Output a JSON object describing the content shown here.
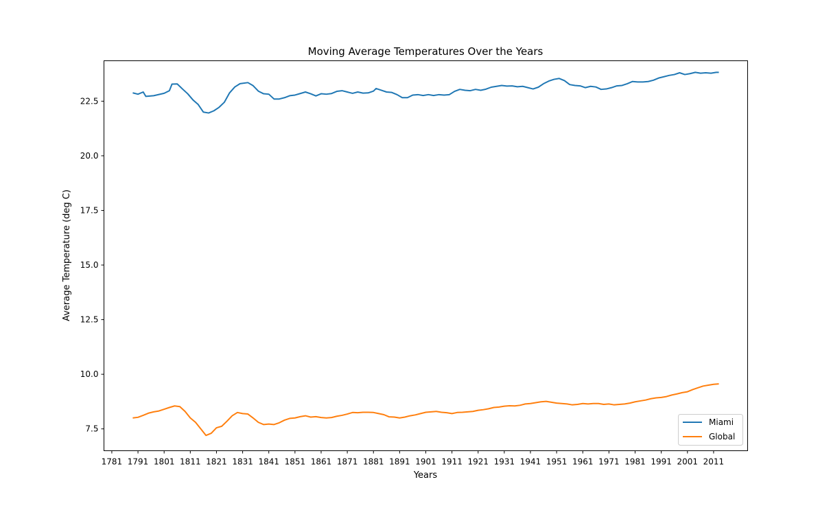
{
  "chart_data": {
    "type": "line",
    "title": "Moving Average Temperatures Over the Years",
    "xlabel": "Years",
    "ylabel": "Average Temperature (deg C)",
    "xlim": [
      1778,
      2024
    ],
    "ylim": [
      6.5,
      24.35
    ],
    "xticks": [
      1781,
      1791,
      1801,
      1811,
      1821,
      1831,
      1841,
      1851,
      1861,
      1871,
      1881,
      1891,
      1901,
      1911,
      1921,
      1931,
      1941,
      1951,
      1961,
      1971,
      1981,
      1991,
      2001,
      2011
    ],
    "yticks": [
      7.5,
      10.0,
      12.5,
      15.0,
      17.5,
      20.0,
      22.5
    ],
    "yticks_text": [
      "7.5",
      "10.0",
      "12.5",
      "15.0",
      "17.5",
      "20.0",
      "22.5"
    ],
    "grid": false,
    "legend_position": "lower-right",
    "series": [
      {
        "name": "Miami",
        "color": "#1f77b4",
        "points": [
          [
            1789,
            22.88
          ],
          [
            1791,
            22.82
          ],
          [
            1793,
            22.92
          ],
          [
            1794,
            22.72
          ],
          [
            1797,
            22.75
          ],
          [
            1801,
            22.86
          ],
          [
            1803,
            22.98
          ],
          [
            1804,
            23.28
          ],
          [
            1806,
            23.29
          ],
          [
            1808,
            23.06
          ],
          [
            1810,
            22.84
          ],
          [
            1812,
            22.56
          ],
          [
            1814,
            22.35
          ],
          [
            1816,
            22.0
          ],
          [
            1818,
            21.96
          ],
          [
            1820,
            22.06
          ],
          [
            1822,
            22.22
          ],
          [
            1824,
            22.45
          ],
          [
            1826,
            22.88
          ],
          [
            1828,
            23.15
          ],
          [
            1830,
            23.3
          ],
          [
            1833,
            23.35
          ],
          [
            1835,
            23.21
          ],
          [
            1837,
            22.96
          ],
          [
            1839,
            22.84
          ],
          [
            1841,
            22.82
          ],
          [
            1843,
            22.6
          ],
          [
            1845,
            22.6
          ],
          [
            1847,
            22.66
          ],
          [
            1849,
            22.75
          ],
          [
            1851,
            22.78
          ],
          [
            1853,
            22.85
          ],
          [
            1855,
            22.92
          ],
          [
            1857,
            22.84
          ],
          [
            1859,
            22.74
          ],
          [
            1861,
            22.84
          ],
          [
            1863,
            22.82
          ],
          [
            1865,
            22.85
          ],
          [
            1867,
            22.95
          ],
          [
            1869,
            22.98
          ],
          [
            1871,
            22.92
          ],
          [
            1873,
            22.86
          ],
          [
            1875,
            22.92
          ],
          [
            1877,
            22.87
          ],
          [
            1879,
            22.88
          ],
          [
            1881,
            22.96
          ],
          [
            1882,
            23.08
          ],
          [
            1884,
            23.0
          ],
          [
            1886,
            22.92
          ],
          [
            1888,
            22.9
          ],
          [
            1890,
            22.8
          ],
          [
            1892,
            22.66
          ],
          [
            1894,
            22.66
          ],
          [
            1896,
            22.78
          ],
          [
            1898,
            22.8
          ],
          [
            1900,
            22.76
          ],
          [
            1902,
            22.8
          ],
          [
            1904,
            22.76
          ],
          [
            1906,
            22.8
          ],
          [
            1908,
            22.78
          ],
          [
            1910,
            22.8
          ],
          [
            1912,
            22.95
          ],
          [
            1914,
            23.04
          ],
          [
            1916,
            23.0
          ],
          [
            1918,
            22.98
          ],
          [
            1920,
            23.04
          ],
          [
            1922,
            23.0
          ],
          [
            1924,
            23.05
          ],
          [
            1926,
            23.14
          ],
          [
            1928,
            23.18
          ],
          [
            1930,
            23.22
          ],
          [
            1932,
            23.19
          ],
          [
            1934,
            23.2
          ],
          [
            1936,
            23.16
          ],
          [
            1938,
            23.18
          ],
          [
            1940,
            23.12
          ],
          [
            1942,
            23.06
          ],
          [
            1944,
            23.14
          ],
          [
            1946,
            23.3
          ],
          [
            1948,
            23.42
          ],
          [
            1950,
            23.5
          ],
          [
            1952,
            23.54
          ],
          [
            1954,
            23.44
          ],
          [
            1956,
            23.26
          ],
          [
            1958,
            23.22
          ],
          [
            1960,
            23.2
          ],
          [
            1962,
            23.12
          ],
          [
            1964,
            23.18
          ],
          [
            1966,
            23.15
          ],
          [
            1968,
            23.04
          ],
          [
            1970,
            23.06
          ],
          [
            1972,
            23.12
          ],
          [
            1974,
            23.2
          ],
          [
            1976,
            23.22
          ],
          [
            1978,
            23.3
          ],
          [
            1980,
            23.4
          ],
          [
            1982,
            23.38
          ],
          [
            1984,
            23.38
          ],
          [
            1986,
            23.4
          ],
          [
            1988,
            23.46
          ],
          [
            1990,
            23.56
          ],
          [
            1992,
            23.62
          ],
          [
            1994,
            23.68
          ],
          [
            1996,
            23.72
          ],
          [
            1998,
            23.8
          ],
          [
            2000,
            23.72
          ],
          [
            2002,
            23.76
          ],
          [
            2004,
            23.82
          ],
          [
            2006,
            23.78
          ],
          [
            2008,
            23.8
          ],
          [
            2010,
            23.78
          ],
          [
            2012,
            23.82
          ],
          [
            2013,
            23.82
          ]
        ]
      },
      {
        "name": "Global",
        "color": "#ff7f0e",
        "points": [
          [
            1789,
            8.0
          ],
          [
            1791,
            8.03
          ],
          [
            1793,
            8.12
          ],
          [
            1795,
            8.22
          ],
          [
            1797,
            8.28
          ],
          [
            1799,
            8.32
          ],
          [
            1801,
            8.4
          ],
          [
            1803,
            8.48
          ],
          [
            1805,
            8.55
          ],
          [
            1807,
            8.52
          ],
          [
            1809,
            8.3
          ],
          [
            1811,
            8.0
          ],
          [
            1813,
            7.8
          ],
          [
            1815,
            7.5
          ],
          [
            1817,
            7.2
          ],
          [
            1819,
            7.3
          ],
          [
            1821,
            7.55
          ],
          [
            1823,
            7.62
          ],
          [
            1825,
            7.85
          ],
          [
            1827,
            8.1
          ],
          [
            1829,
            8.25
          ],
          [
            1831,
            8.2
          ],
          [
            1833,
            8.18
          ],
          [
            1835,
            8.0
          ],
          [
            1837,
            7.8
          ],
          [
            1839,
            7.7
          ],
          [
            1841,
            7.72
          ],
          [
            1843,
            7.7
          ],
          [
            1845,
            7.78
          ],
          [
            1847,
            7.9
          ],
          [
            1849,
            7.98
          ],
          [
            1851,
            8.0
          ],
          [
            1853,
            8.06
          ],
          [
            1855,
            8.1
          ],
          [
            1857,
            8.04
          ],
          [
            1859,
            8.06
          ],
          [
            1861,
            8.02
          ],
          [
            1863,
            8.0
          ],
          [
            1865,
            8.02
          ],
          [
            1867,
            8.08
          ],
          [
            1869,
            8.12
          ],
          [
            1871,
            8.18
          ],
          [
            1873,
            8.25
          ],
          [
            1875,
            8.24
          ],
          [
            1877,
            8.26
          ],
          [
            1879,
            8.26
          ],
          [
            1881,
            8.25
          ],
          [
            1883,
            8.2
          ],
          [
            1885,
            8.15
          ],
          [
            1887,
            8.05
          ],
          [
            1889,
            8.04
          ],
          [
            1891,
            8.0
          ],
          [
            1893,
            8.04
          ],
          [
            1895,
            8.1
          ],
          [
            1897,
            8.14
          ],
          [
            1899,
            8.2
          ],
          [
            1901,
            8.26
          ],
          [
            1903,
            8.28
          ],
          [
            1905,
            8.3
          ],
          [
            1907,
            8.26
          ],
          [
            1909,
            8.24
          ],
          [
            1911,
            8.2
          ],
          [
            1913,
            8.25
          ],
          [
            1915,
            8.26
          ],
          [
            1917,
            8.28
          ],
          [
            1919,
            8.3
          ],
          [
            1921,
            8.35
          ],
          [
            1923,
            8.38
          ],
          [
            1925,
            8.42
          ],
          [
            1927,
            8.48
          ],
          [
            1929,
            8.5
          ],
          [
            1931,
            8.54
          ],
          [
            1933,
            8.56
          ],
          [
            1935,
            8.55
          ],
          [
            1937,
            8.58
          ],
          [
            1939,
            8.64
          ],
          [
            1941,
            8.66
          ],
          [
            1943,
            8.7
          ],
          [
            1945,
            8.74
          ],
          [
            1947,
            8.76
          ],
          [
            1949,
            8.72
          ],
          [
            1951,
            8.68
          ],
          [
            1953,
            8.66
          ],
          [
            1955,
            8.64
          ],
          [
            1957,
            8.6
          ],
          [
            1959,
            8.62
          ],
          [
            1961,
            8.66
          ],
          [
            1963,
            8.64
          ],
          [
            1965,
            8.66
          ],
          [
            1967,
            8.66
          ],
          [
            1969,
            8.62
          ],
          [
            1971,
            8.64
          ],
          [
            1973,
            8.6
          ],
          [
            1975,
            8.62
          ],
          [
            1977,
            8.64
          ],
          [
            1979,
            8.68
          ],
          [
            1981,
            8.74
          ],
          [
            1983,
            8.78
          ],
          [
            1985,
            8.82
          ],
          [
            1987,
            8.88
          ],
          [
            1989,
            8.92
          ],
          [
            1991,
            8.94
          ],
          [
            1993,
            8.98
          ],
          [
            1995,
            9.05
          ],
          [
            1997,
            9.1
          ],
          [
            1999,
            9.16
          ],
          [
            2001,
            9.2
          ],
          [
            2003,
            9.3
          ],
          [
            2005,
            9.38
          ],
          [
            2007,
            9.46
          ],
          [
            2009,
            9.5
          ],
          [
            2011,
            9.54
          ],
          [
            2013,
            9.56
          ]
        ]
      }
    ]
  }
}
